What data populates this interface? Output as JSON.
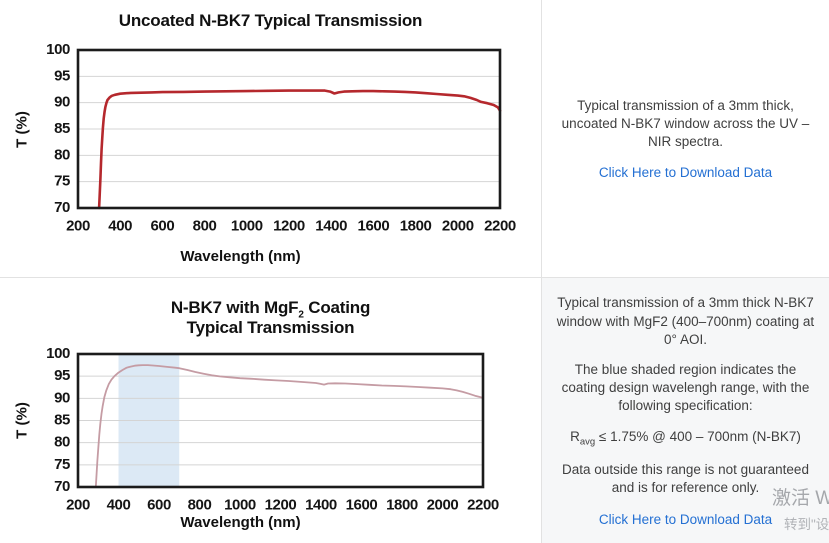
{
  "colors": {
    "uncoated_curve": "#b5282d",
    "coated_curve": "#c59ca4",
    "shaded_region": "#dce9f5",
    "gridline": "#d4d4d4",
    "axis_border": "#1b1b1b",
    "link": "#2470d3",
    "bottom_right_panel_bg": "#f6f7f8",
    "divider": "#e2e2e2"
  },
  "panels": {
    "uncoated": {
      "description": "Typical transmission of a 3mm thick, uncoated N-BK7 window across the UV – NIR spectra.",
      "link_label": "Click Here to Download Data"
    },
    "coated": {
      "p1": "Typical transmission of a 3mm thick N-BK7 window with MgF2 (400–700nm) coating at 0° AOI.",
      "p2": "The blue shaded region indicates the coating design wavelengh range, with the following specification:",
      "spec_base": "R",
      "spec_sub": "avg",
      "spec_rest": " ≤ 1.75% @ 400 – 700nm (N-BK7)",
      "p4": "Data outside this range is not guaranteed and is for reference only.",
      "link_label": "Click Here to Download Data"
    }
  },
  "watermark": {
    "line1": "激活 W",
    "line2": "转到\"设"
  },
  "chart_data": [
    {
      "type": "line",
      "title": "Uncoated N-BK7 Typical Transmission",
      "xlabel": "Wavelength (nm)",
      "ylabel": "T (%)",
      "xlim": [
        200,
        2200
      ],
      "ylim": [
        70,
        100
      ],
      "xticks": [
        200,
        400,
        600,
        800,
        1000,
        1200,
        1400,
        1600,
        1800,
        2000,
        2200
      ],
      "yticks": [
        70,
        75,
        80,
        85,
        90,
        95,
        100
      ],
      "grid": "horizontal-only",
      "legend": "none",
      "series": [
        {
          "name": "uncoated-nbk7-transmission",
          "color": "#b5282d",
          "points": [
            [
              300,
              70
            ],
            [
              303,
              72.5
            ],
            [
              306,
              75.5
            ],
            [
              309,
              78.5
            ],
            [
              312,
              81.2
            ],
            [
              315,
              83.4
            ],
            [
              318,
              85.2
            ],
            [
              322,
              87
            ],
            [
              326,
              88.3
            ],
            [
              330,
              89.2
            ],
            [
              335,
              90
            ],
            [
              340,
              90.5
            ],
            [
              350,
              91
            ],
            [
              360,
              91.3
            ],
            [
              375,
              91.5
            ],
            [
              400,
              91.7
            ],
            [
              450,
              91.85
            ],
            [
              500,
              91.9
            ],
            [
              550,
              91.95
            ],
            [
              600,
              92
            ],
            [
              700,
              92.05
            ],
            [
              800,
              92.1
            ],
            [
              900,
              92.15
            ],
            [
              1000,
              92.2
            ],
            [
              1100,
              92.25
            ],
            [
              1200,
              92.3
            ],
            [
              1300,
              92.3
            ],
            [
              1370,
              92.3
            ],
            [
              1395,
              92.1
            ],
            [
              1415,
              91.75
            ],
            [
              1435,
              91.95
            ],
            [
              1460,
              92.1
            ],
            [
              1500,
              92.15
            ],
            [
              1550,
              92.2
            ],
            [
              1600,
              92.2
            ],
            [
              1650,
              92.15
            ],
            [
              1700,
              92.1
            ],
            [
              1750,
              92.05
            ],
            [
              1800,
              91.95
            ],
            [
              1850,
              91.8
            ],
            [
              1900,
              91.65
            ],
            [
              1950,
              91.5
            ],
            [
              2000,
              91.35
            ],
            [
              2030,
              91.2
            ],
            [
              2060,
              90.9
            ],
            [
              2090,
              90.5
            ],
            [
              2110,
              90.15
            ],
            [
              2140,
              89.9
            ],
            [
              2170,
              89.55
            ],
            [
              2190,
              89.1
            ],
            [
              2200,
              88.5
            ]
          ]
        }
      ]
    },
    {
      "type": "line",
      "title_line1_base": "N-BK7 with MgF",
      "title_line1_sub": "2",
      "title_line1_rest": " Coating",
      "title_line2": "Typical Transmission",
      "xlabel": "Wavelength (nm)",
      "ylabel": "T (%)",
      "xlim": [
        200,
        2200
      ],
      "ylim": [
        70,
        100
      ],
      "xticks": [
        200,
        400,
        600,
        800,
        1000,
        1200,
        1400,
        1600,
        1800,
        2000,
        2200
      ],
      "yticks": [
        70,
        75,
        80,
        85,
        90,
        95,
        100
      ],
      "grid": "horizontal-only",
      "legend": "none",
      "shaded_region": {
        "x_from": 400,
        "x_to": 700,
        "color": "#dce9f5",
        "meaning": "coating design wavelength range"
      },
      "series": [
        {
          "name": "mgf2-coated-nbk7-transmission",
          "color": "#c59ca4",
          "points": [
            [
              288,
              70
            ],
            [
              292,
              73
            ],
            [
              296,
              76
            ],
            [
              300,
              78.8
            ],
            [
              305,
              81.8
            ],
            [
              310,
              84.2
            ],
            [
              316,
              86.5
            ],
            [
              322,
              88.3
            ],
            [
              330,
              90.2
            ],
            [
              340,
              91.8
            ],
            [
              352,
              93.2
            ],
            [
              365,
              94.2
            ],
            [
              380,
              95
            ],
            [
              400,
              95.8
            ],
            [
              420,
              96.4
            ],
            [
              440,
              96.9
            ],
            [
              460,
              97.15
            ],
            [
              480,
              97.35
            ],
            [
              500,
              97.45
            ],
            [
              520,
              97.5
            ],
            [
              545,
              97.5
            ],
            [
              570,
              97.4
            ],
            [
              600,
              97.3
            ],
            [
              640,
              97.1
            ],
            [
              680,
              96.9
            ],
            [
              700,
              96.8
            ],
            [
              740,
              96.4
            ],
            [
              780,
              95.95
            ],
            [
              820,
              95.55
            ],
            [
              860,
              95.2
            ],
            [
              900,
              94.95
            ],
            [
              950,
              94.75
            ],
            [
              1000,
              94.55
            ],
            [
              1060,
              94.4
            ],
            [
              1120,
              94.2
            ],
            [
              1180,
              94.05
            ],
            [
              1240,
              93.9
            ],
            [
              1300,
              93.7
            ],
            [
              1350,
              93.55
            ],
            [
              1375,
              93.45
            ],
            [
              1395,
              93.3
            ],
            [
              1415,
              93.1
            ],
            [
              1435,
              93.35
            ],
            [
              1470,
              93.4
            ],
            [
              1520,
              93.35
            ],
            [
              1580,
              93.2
            ],
            [
              1640,
              93.05
            ],
            [
              1700,
              92.9
            ],
            [
              1760,
              92.8
            ],
            [
              1820,
              92.7
            ],
            [
              1880,
              92.55
            ],
            [
              1940,
              92.4
            ],
            [
              2000,
              92.25
            ],
            [
              2040,
              92.05
            ],
            [
              2070,
              91.8
            ],
            [
              2100,
              91.45
            ],
            [
              2130,
              91.05
            ],
            [
              2160,
              90.6
            ],
            [
              2180,
              90.35
            ],
            [
              2200,
              90.1
            ]
          ]
        }
      ]
    }
  ]
}
